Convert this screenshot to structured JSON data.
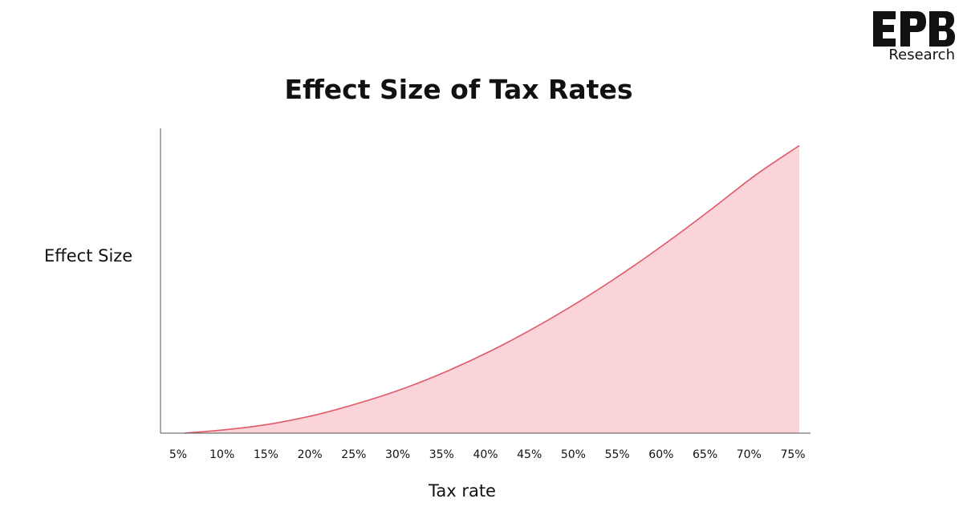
{
  "brand": {
    "logo_letters": "EPB",
    "subtitle": "Research"
  },
  "chart_data": {
    "type": "area",
    "title": "Effect Size of Tax Rates",
    "xlabel": "Tax rate",
    "ylabel": "Effect Size",
    "categories": [
      "5%",
      "10%",
      "15%",
      "20%",
      "25%",
      "30%",
      "35%",
      "40%",
      "45%",
      "50%",
      "55%",
      "60%",
      "65%",
      "70%",
      "75%"
    ],
    "series": [
      {
        "values": [
          0,
          0.013,
          0.033,
          0.064,
          0.106,
          0.156,
          0.217,
          0.288,
          0.369,
          0.459,
          0.558,
          0.665,
          0.779,
          0.897,
          1.0
        ]
      }
    ],
    "ylim": [
      0,
      1.06
    ],
    "grid": false,
    "colors": {
      "line": "#e05a67",
      "fill": "#fbd4d9",
      "axis": "#555555"
    }
  }
}
